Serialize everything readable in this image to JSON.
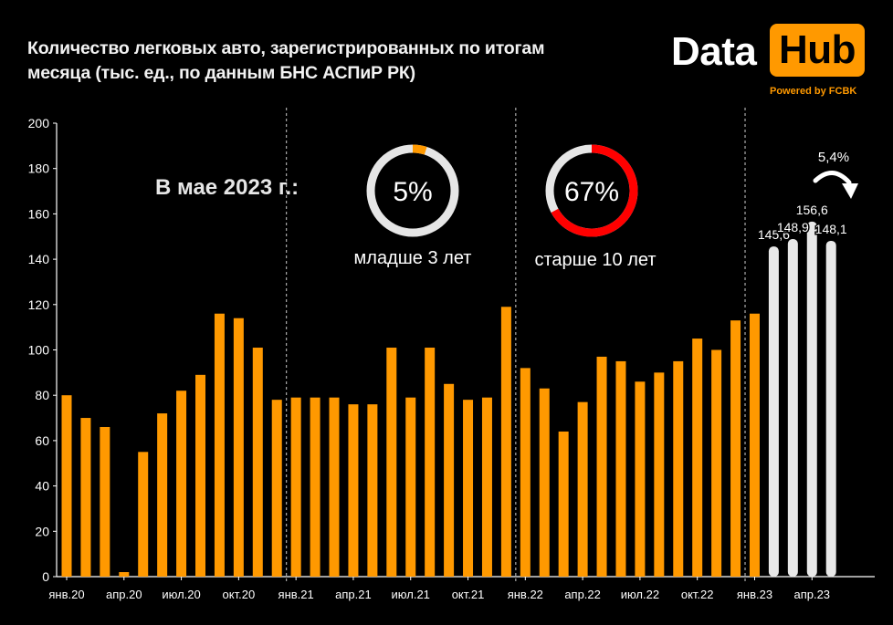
{
  "title_lines": [
    "Количество легковых авто, зарегистрированных  по итогам",
    "месяца (тыс. ед., по данным БНС АСПиР РК)"
  ],
  "logo": {
    "word1": "Data",
    "word2": "Hub",
    "powered": "Powered by FCBK"
  },
  "headline": "В мае 2023 г.:",
  "donuts": [
    {
      "value_label": "5%",
      "value": 5,
      "caption": "младше 3 лет",
      "color": "#ff9900",
      "track": "#e6e6e6"
    },
    {
      "value_label": "67%",
      "value": 67,
      "caption": "старше 10 лет",
      "color": "#ff0000",
      "track": "#e6e6e6"
    }
  ],
  "growth_label": "5,4%",
  "colors": {
    "orange": "#ff9900",
    "white_bar": "#e8e8e8",
    "axis": "#ffffff",
    "divider": "#cccccc"
  },
  "chart_data": {
    "type": "bar",
    "y_ticks": [
      "0",
      "20",
      "40",
      "60",
      "80",
      "100",
      "120",
      "140",
      "160",
      "180",
      "200"
    ],
    "ylim": [
      0,
      200
    ],
    "x_labels": [
      {
        "index": 0,
        "text": "янв.20"
      },
      {
        "index": 3,
        "text": "апр.20"
      },
      {
        "index": 6,
        "text": "июл.20"
      },
      {
        "index": 9,
        "text": "окт.20"
      },
      {
        "index": 12,
        "text": "янв.21"
      },
      {
        "index": 15,
        "text": "апр.21"
      },
      {
        "index": 18,
        "text": "июл.21"
      },
      {
        "index": 21,
        "text": "окт.21"
      },
      {
        "index": 24,
        "text": "янв.22"
      },
      {
        "index": 27,
        "text": "апр.22"
      },
      {
        "index": 30,
        "text": "июл.22"
      },
      {
        "index": 33,
        "text": "окт.22"
      },
      {
        "index": 36,
        "text": "янв.23"
      },
      {
        "index": 39,
        "text": "апр.23"
      }
    ],
    "year_dividers_before_index": [
      12,
      24,
      36
    ],
    "values": [
      80,
      70,
      66,
      2,
      55,
      72,
      82,
      89,
      116,
      114,
      101,
      78,
      79,
      79,
      79,
      76,
      76,
      101,
      79,
      101,
      85,
      78,
      79,
      119,
      92,
      83,
      64,
      77,
      97,
      95,
      86,
      90,
      95,
      105,
      100,
      113,
      116,
      145.6,
      148.9,
      156.6,
      148.1
    ],
    "highlight_from_index": 37,
    "data_labels": [
      {
        "index": 37,
        "text": "145,6"
      },
      {
        "index": 38,
        "text": "148,9"
      },
      {
        "index": 39,
        "text": "156,6"
      },
      {
        "index": 40,
        "text": "148,1"
      }
    ]
  }
}
